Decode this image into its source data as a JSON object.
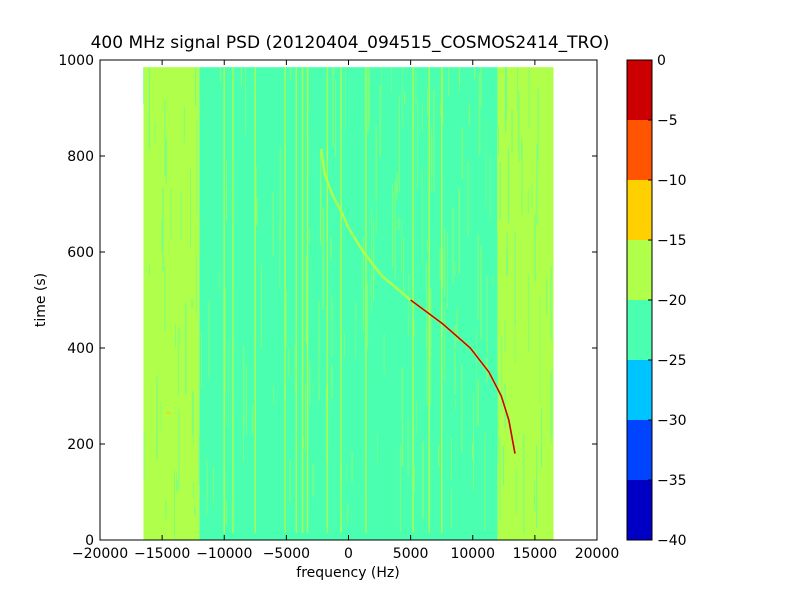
{
  "chart_data": {
    "type": "heatmap",
    "title": "400 MHz signal PSD (20120404_094515_COSMOS2414_TRO)",
    "xlabel": "frequency (Hz)",
    "ylabel": "time (s)",
    "xlim": [
      -20000,
      20000
    ],
    "ylim": [
      0,
      1000
    ],
    "x_ticks": [
      -20000,
      -15000,
      -10000,
      -5000,
      0,
      5000,
      10000,
      15000,
      20000
    ],
    "x_tick_labels": [
      "−20000",
      "−15000",
      "−10000",
      "−5000",
      "0",
      "5000",
      "10000",
      "15000",
      "20000"
    ],
    "y_ticks": [
      0,
      200,
      400,
      600,
      800,
      1000
    ],
    "y_tick_labels": [
      "0",
      "200",
      "400",
      "600",
      "800",
      "1000"
    ],
    "data_extent": {
      "freq_min": -16500,
      "freq_max": 16500,
      "time_min": 0,
      "time_max": 985
    },
    "band_levels": [
      {
        "freq_start": -16500,
        "freq_end": -12000,
        "level": -18
      },
      {
        "freq_start": -12000,
        "freq_end": 12000,
        "level": -22
      },
      {
        "freq_start": 12000,
        "freq_end": 16500,
        "level": -18
      }
    ],
    "vertical_lines_hz": [
      -10000,
      -9300,
      -7500,
      -5100,
      -4200,
      -3700,
      -3300,
      -1700,
      -600,
      1400,
      5200,
      6500,
      7500
    ],
    "doppler_trace": {
      "level": -3,
      "points": [
        {
          "t": 815,
          "f": -2200
        },
        {
          "t": 760,
          "f": -1900
        },
        {
          "t": 720,
          "f": -1300
        },
        {
          "t": 680,
          "f": -500
        },
        {
          "t": 650,
          "f": 0
        },
        {
          "t": 600,
          "f": 1200
        },
        {
          "t": 550,
          "f": 2700
        },
        {
          "t": 500,
          "f": 5000
        },
        {
          "t": 450,
          "f": 7600
        },
        {
          "t": 400,
          "f": 9800
        },
        {
          "t": 350,
          "f": 11300
        },
        {
          "t": 300,
          "f": 12300
        },
        {
          "t": 250,
          "f": 12900
        },
        {
          "t": 180,
          "f": 13400
        }
      ]
    },
    "spur": {
      "t": 265,
      "f": -14500,
      "level": -12
    },
    "colorbar": {
      "range": [
        -40,
        0
      ],
      "ticks": [
        0,
        -5,
        -10,
        -15,
        -20,
        -25,
        -30,
        -35,
        -40
      ],
      "tick_labels": [
        "0",
        "−5",
        "−10",
        "−15",
        "−20",
        "−25",
        "−30",
        "−35",
        "−40"
      ],
      "bands": [
        {
          "from": -5,
          "to": 0,
          "color": "#cc0000"
        },
        {
          "from": -10,
          "to": -5,
          "color": "#ff5500"
        },
        {
          "from": -15,
          "to": -10,
          "color": "#ffd000"
        },
        {
          "from": -20,
          "to": -15,
          "color": "#b0ff4a"
        },
        {
          "from": -25,
          "to": -20,
          "color": "#4affb0"
        },
        {
          "from": -30,
          "to": -25,
          "color": "#00c4ff"
        },
        {
          "from": -35,
          "to": -30,
          "color": "#0044ff"
        },
        {
          "from": -40,
          "to": -35,
          "color": "#0000c4"
        }
      ]
    },
    "grid": false,
    "legend": "colorbar right"
  }
}
